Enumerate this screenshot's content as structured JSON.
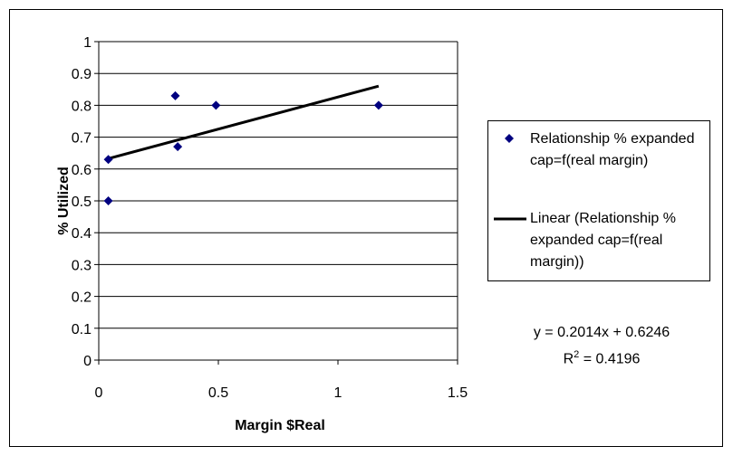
{
  "chart_data": {
    "type": "scatter",
    "xlabel": "Margin $Real",
    "ylabel": "% Utilized",
    "xlim": [
      0,
      1.5
    ],
    "ylim": [
      0,
      1
    ],
    "x_ticks": [
      "0",
      "0.5",
      "1",
      "1.5"
    ],
    "y_ticks": [
      "0",
      "0.1",
      "0.2",
      "0.3",
      "0.4",
      "0.5",
      "0.6",
      "0.7",
      "0.8",
      "0.9",
      "1"
    ],
    "grid": "horizontal",
    "legend_position": "right",
    "series": [
      {
        "name": "Relationship % expanded cap=f(real margin)",
        "marker": "diamond",
        "color": "#000080",
        "points": [
          {
            "x": 0.04,
            "y": 0.5
          },
          {
            "x": 0.04,
            "y": 0.63
          },
          {
            "x": 0.32,
            "y": 0.83
          },
          {
            "x": 0.33,
            "y": 0.67
          },
          {
            "x": 0.49,
            "y": 0.8
          },
          {
            "x": 1.17,
            "y": 0.8
          }
        ]
      }
    ],
    "trendline": {
      "name": "Linear (Relationship % expanded cap=f(real margin))",
      "slope": 0.2014,
      "intercept": 0.6246,
      "x_range": [
        0.04,
        1.17
      ],
      "color": "#000000"
    },
    "equation": "y = 0.2014x + 0.6246",
    "r_squared_label": "R",
    "r_squared_exponent": "2",
    "r_squared_value": " = 0.4196"
  }
}
